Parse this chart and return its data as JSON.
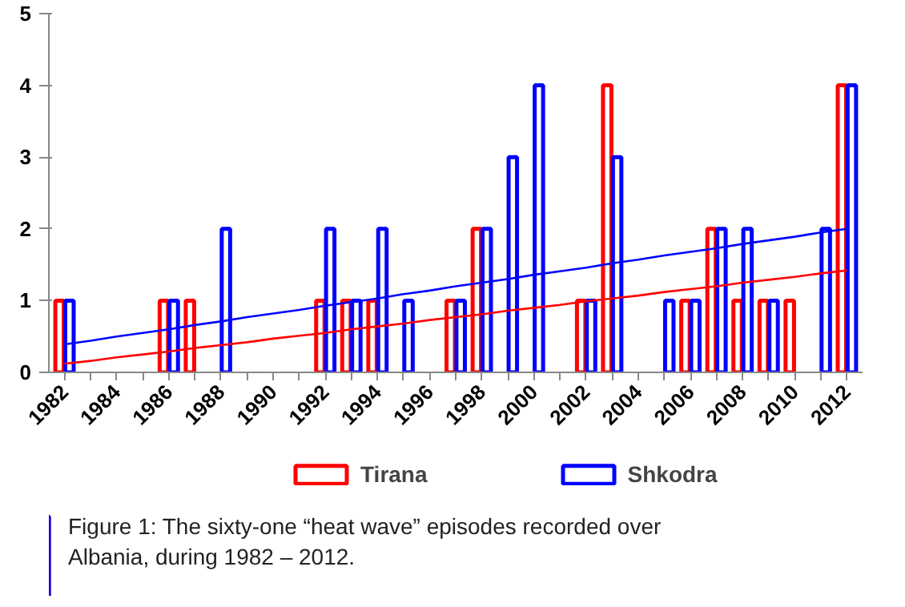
{
  "chart_data": {
    "type": "bar",
    "categories": [
      "1982",
      null,
      "1984",
      null,
      "1986",
      null,
      "1988",
      null,
      "1990",
      null,
      "1992",
      null,
      "1994",
      null,
      "1996",
      null,
      "1998",
      null,
      "2000",
      null,
      "2002",
      null,
      "2004",
      null,
      "2006",
      null,
      "2008",
      null,
      "2010",
      null,
      "2012"
    ],
    "series": [
      {
        "name": "Tirana",
        "color": "#ff0000",
        "values": [
          1,
          0,
          0,
          0,
          1,
          1,
          0,
          0,
          0,
          0,
          1,
          1,
          1,
          0,
          0,
          1,
          2,
          0,
          0,
          0,
          1,
          4,
          0,
          0,
          1,
          2,
          1,
          1,
          1,
          0,
          4
        ]
      },
      {
        "name": "Shkodra",
        "color": "#0000ff",
        "values": [
          1,
          0,
          0,
          0,
          1,
          0,
          2,
          0,
          0,
          0,
          2,
          1,
          2,
          1,
          0,
          1,
          2,
          3,
          4,
          0,
          1,
          3,
          0,
          1,
          1,
          2,
          2,
          1,
          0,
          2,
          4
        ]
      },
      {
        "type": "line",
        "color": "#ff0000",
        "values": [
          0.12,
          0.16,
          0.21,
          0.25,
          0.29,
          0.34,
          0.38,
          0.42,
          0.47,
          0.51,
          0.55,
          0.6,
          0.64,
          0.68,
          0.73,
          0.77,
          0.81,
          0.86,
          0.9,
          0.94,
          0.99,
          1.03,
          1.07,
          1.12,
          1.16,
          1.2,
          1.25,
          1.29,
          1.33,
          1.38,
          1.42
        ]
      },
      {
        "type": "line",
        "color": "#0000ff",
        "values": [
          0.39,
          0.44,
          0.5,
          0.55,
          0.6,
          0.66,
          0.71,
          0.77,
          0.82,
          0.87,
          0.93,
          0.98,
          1.03,
          1.09,
          1.14,
          1.2,
          1.25,
          1.3,
          1.36,
          1.41,
          1.46,
          1.52,
          1.57,
          1.63,
          1.68,
          1.73,
          1.79,
          1.84,
          1.89,
          1.95,
          2.0
        ]
      }
    ],
    "ylim": [
      0,
      5
    ],
    "yticks": [
      0,
      1,
      2,
      3,
      4,
      5
    ],
    "grid": false,
    "legend": "bottom",
    "annotations": [
      "Figure 1: The sixty-one “heat wave” episodes recorded over Albania, during 1982 – 2012."
    ]
  }
}
